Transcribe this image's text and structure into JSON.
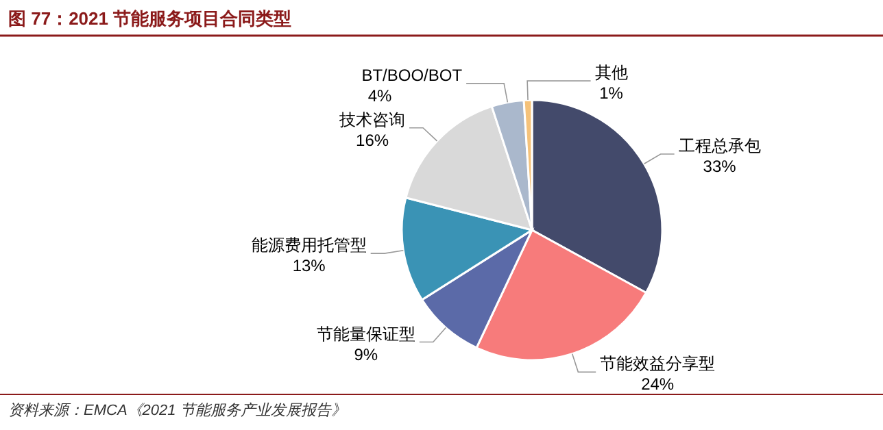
{
  "chart_data": {
    "type": "pie",
    "title": "图 77：2021 节能服务项目合同类型",
    "categories": [
      "工程总承包",
      "节能效益分享型",
      "节能量保证型",
      "能源费用托管型",
      "技术咨询",
      "BT/BOO/BOT",
      "其他"
    ],
    "values": [
      33,
      24,
      9,
      13,
      16,
      4,
      1
    ],
    "value_labels": [
      "33%",
      "24%",
      "9%",
      "13%",
      "16%",
      "4%",
      "1%"
    ],
    "colors": [
      "#434a6b",
      "#f77b7b",
      "#5b6aa8",
      "#3a93b5",
      "#d9d9d9",
      "#aab8cc",
      "#f5c27a"
    ],
    "annotations": [
      "资料来源：EMCA《2021 节能服务产业发展报告》"
    ]
  }
}
